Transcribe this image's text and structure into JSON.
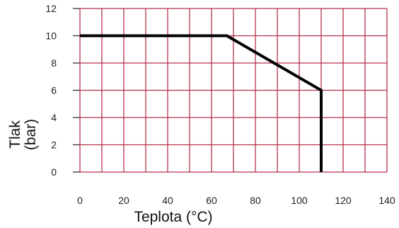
{
  "chart_data": {
    "type": "line",
    "title": "",
    "xlabel": "Teplota (°C)",
    "ylabel": "Tlak",
    "ylabel_unit": "(bar)",
    "xlim": [
      0,
      140
    ],
    "ylim": [
      0,
      12
    ],
    "xticks": [
      0,
      20,
      40,
      60,
      80,
      100,
      120,
      140
    ],
    "yticks": [
      0,
      2,
      4,
      6,
      8,
      10,
      12
    ],
    "x_minor_step": 10,
    "grid": true,
    "legend": "none",
    "series": [
      {
        "x": [
          0,
          67,
          110,
          110
        ],
        "y": [
          10,
          10,
          6,
          0
        ]
      }
    ],
    "colors": {
      "grid": "#b5324a",
      "line": "#000000",
      "axis": "#333333"
    }
  }
}
